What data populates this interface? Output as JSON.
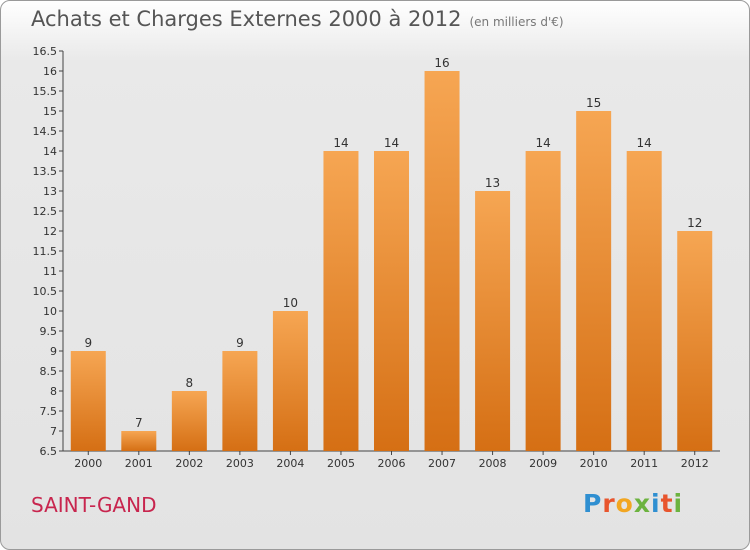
{
  "title": "Achats et Charges Externes 2000 à 2012",
  "subtitle": "(en milliers d'€)",
  "commune": "SAINT-GAND",
  "logo": {
    "letters": [
      "P",
      "r",
      "o",
      "x",
      "i",
      "t",
      "i"
    ],
    "colors": [
      "#2f8fd1",
      "#e8552d",
      "#f2a621",
      "#6cb33f",
      "#2f8fd1",
      "#e8552d",
      "#6cb33f"
    ]
  },
  "colors": {
    "bar_light": "#f6a653",
    "bar_dark": "#d56f14",
    "text_accent": "#c8254e"
  },
  "chart_data": {
    "type": "bar",
    "categories": [
      "2000",
      "2001",
      "2002",
      "2003",
      "2004",
      "2005",
      "2006",
      "2007",
      "2008",
      "2009",
      "2010",
      "2011",
      "2012"
    ],
    "values": [
      9,
      7,
      8,
      9,
      10,
      14,
      14,
      16,
      13,
      14,
      15,
      14,
      12
    ],
    "value_labels": [
      "9",
      "7",
      "8",
      "9",
      "10",
      "14",
      "14",
      "16",
      "13",
      "14",
      "15",
      "14",
      "12"
    ],
    "ylim": [
      6.5,
      16.5
    ],
    "yticks": [
      "6.5",
      "7",
      "7.5",
      "8",
      "8.5",
      "9",
      "9.5",
      "10",
      "10.5",
      "11",
      "11.5",
      "12",
      "12.5",
      "13",
      "13.5",
      "14",
      "14.5",
      "15",
      "15.5",
      "16",
      "16.5"
    ],
    "grid": false,
    "title": "Achats et Charges Externes 2000 à 2012",
    "xlabel": "",
    "ylabel": ""
  }
}
